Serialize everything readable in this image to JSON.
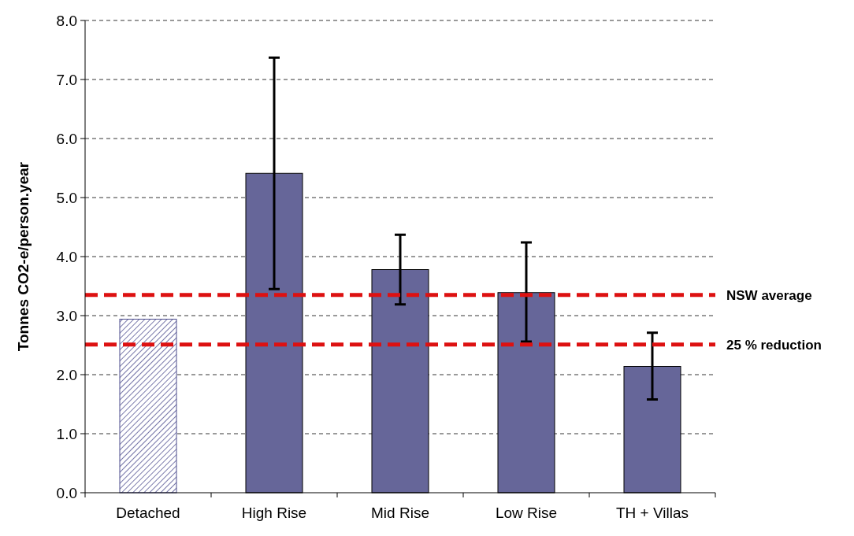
{
  "chart_data": {
    "type": "bar",
    "ylabel": "Tonnes CO2-e/person.year",
    "categories": [
      "Detached",
      "High Rise",
      "Mid Rise",
      "Low Rise",
      "TH + Villas"
    ],
    "values": [
      2.94,
      5.41,
      3.78,
      3.39,
      2.14
    ],
    "colors": [
      "#4a4a8c",
      "#666699",
      "#666699",
      "#666699",
      "#666699"
    ],
    "errors": [
      null,
      [
        3.45,
        7.37
      ],
      [
        3.19,
        4.37
      ],
      [
        2.56,
        4.24
      ],
      [
        1.58,
        2.71
      ]
    ],
    "ylim": [
      0,
      8
    ],
    "yticks": [
      {
        "value": 0,
        "label": "0.0"
      },
      {
        "value": 1,
        "label": "1.0"
      },
      {
        "value": 2,
        "label": "2.0"
      },
      {
        "value": 3,
        "label": "3.0"
      },
      {
        "value": 4,
        "label": "4.0"
      },
      {
        "value": 5,
        "label": "5.0"
      },
      {
        "value": 6,
        "label": "6.0"
      },
      {
        "value": 7,
        "label": "7.0"
      },
      {
        "value": 8,
        "label": "8.0"
      }
    ],
    "grid": "y",
    "ref_lines": [
      {
        "axis": "y",
        "value": 3.35,
        "label": "NSW average",
        "color": "#dd1111",
        "line_style": "dashed"
      },
      {
        "axis": "y",
        "value": 2.51,
        "label": "25 % reduction",
        "color": "#dd1111",
        "line_style": "dashed"
      }
    ]
  }
}
